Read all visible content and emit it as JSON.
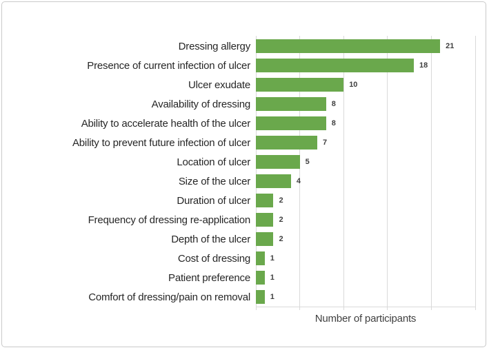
{
  "figure": {
    "background": "#ffffff",
    "border_color": "#c9c9c9"
  },
  "chart_data": {
    "type": "bar",
    "orientation": "horizontal",
    "title": "",
    "xlabel": "Number of participants",
    "ylabel": "",
    "categories": [
      "Dressing allergy",
      "Presence of current infection of ulcer",
      "Ulcer exudate",
      "Availability of dressing",
      "Ability to accelerate health of the ulcer",
      "Ability to prevent future infection of ulcer",
      "Location of ulcer",
      "Size of the ulcer",
      "Duration of ulcer",
      "Frequency of dressing re-application",
      "Depth of the ulcer",
      "Cost of dressing",
      "Patient preference",
      "Comfort of dressing/pain on removal"
    ],
    "values": [
      21,
      18,
      10,
      8,
      8,
      7,
      5,
      4,
      2,
      2,
      2,
      1,
      1,
      1
    ],
    "data_labels": true,
    "xlim": [
      0,
      25
    ],
    "gridline_interval": 5,
    "grid": "vertical",
    "legend": "none",
    "bar_color": "#6aa84c",
    "gridline_color": "#d9d9d9",
    "category_label_color": "#262626",
    "value_label_color": "#404040"
  }
}
